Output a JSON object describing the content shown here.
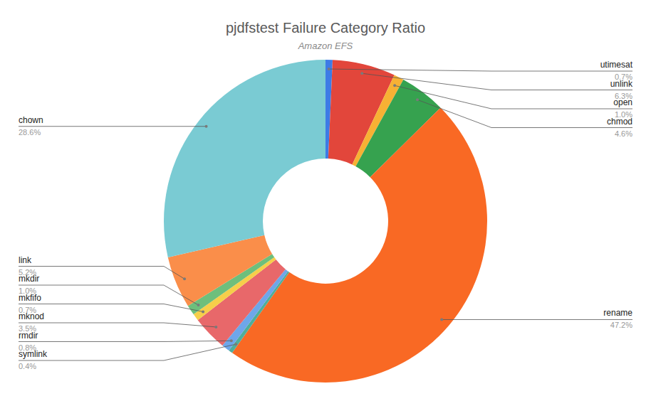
{
  "chart_data": {
    "type": "donut",
    "title": "pjdfstest Failure Category Ratio",
    "subtitle": "Amazon EFS",
    "categories": [
      "utimesat",
      "unlink",
      "open",
      "chmod",
      "rename",
      "symlink",
      "rmdir",
      "mknod",
      "mkfifo",
      "mkdir",
      "link",
      "chown"
    ],
    "values": [
      0.7,
      6.3,
      1.0,
      4.6,
      47.2,
      0.4,
      0.8,
      3.5,
      0.7,
      1.0,
      5.2,
      28.6
    ],
    "value_labels": [
      "0.7%",
      "6.3%",
      "1.0%",
      "4.6%",
      "47.2%",
      "0.4%",
      "0.8%",
      "3.5%",
      "0.7%",
      "1.0%",
      "5.2%",
      "28.6%"
    ],
    "colors": [
      "#3d7be6",
      "#e2463b",
      "#f7b134",
      "#36a24f",
      "#f96924",
      "#4fae9b",
      "#6ea6ea",
      "#e8686a",
      "#f6cf4a",
      "#6dbf7c",
      "#fa8e4a",
      "#7acbd3"
    ],
    "data_labels": true
  }
}
